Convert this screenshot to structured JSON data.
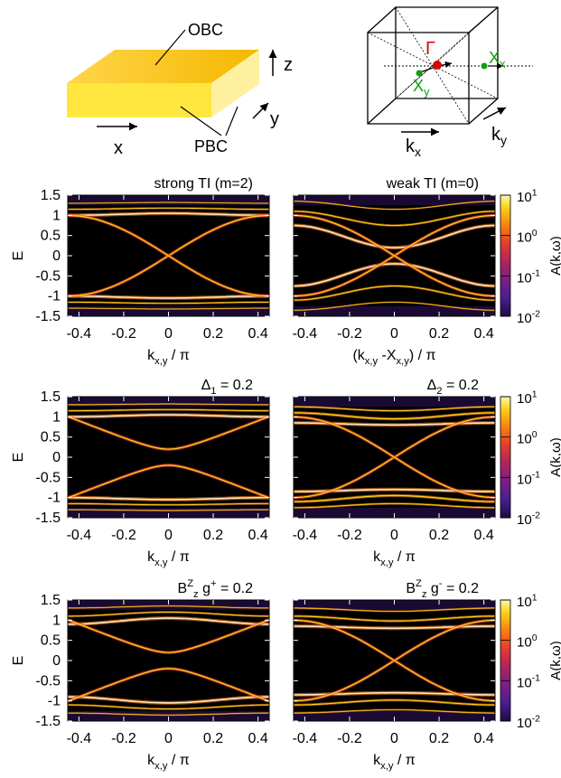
{
  "schematic": {
    "slab": {
      "top_label": "OBC",
      "side_label": "PBC",
      "axis_x": "x",
      "axis_y": "y",
      "axis_z": "z"
    },
    "bz": {
      "gamma": "Γ",
      "xx_main": "X",
      "xx_sub": "x",
      "xy_main": "X",
      "xy_sub": "y",
      "kx_main": "k",
      "kx_sub": "x",
      "ky_main": "k",
      "ky_sub": "y",
      "gamma_color": "#e00000",
      "point_color": "#10a010"
    }
  },
  "colors": {
    "colormap": [
      "#1c0b46",
      "#4a1e91",
      "#7a1f83",
      "#b0245f",
      "#e23d2d",
      "#f7820d",
      "#fbd21a",
      "#fff8b0"
    ],
    "band_hot": "#ffe7c9",
    "background": "#000000"
  },
  "chart_data": [
    {
      "type": "heatmap",
      "id": "p1",
      "title": "strong TI (m=2)",
      "x_tick_labels": [
        "-0.4",
        "-0.2",
        "0",
        "0.2",
        "0.4"
      ],
      "xlabel_main": "k",
      "xlabel_sub": "x,y",
      "xlabel_tail": " / π",
      "ylabel": "E",
      "y_tick_labels": [
        "1.5",
        "1",
        "0.5",
        "0",
        "-0.5",
        "-1",
        "-1.5"
      ],
      "xlim": [
        -0.45,
        0.45
      ],
      "ylim": [
        -1.5,
        1.5
      ],
      "surface": "crossing",
      "surface_gap": 0,
      "bands": [
        {
          "level": 1.0,
          "amp": 0.05,
          "strength": 1.0
        },
        {
          "level": 1.15,
          "amp": 0.03,
          "strength": 0.55
        },
        {
          "level": 1.3,
          "amp": 0.02,
          "strength": 0.4
        }
      ],
      "colorbar": false
    },
    {
      "type": "heatmap",
      "id": "p2",
      "title": "weak TI (m=0)",
      "x_tick_labels": [
        "-0.4",
        "-0.2",
        "0",
        "0.2",
        "0.4"
      ],
      "xlabel_main": "(k",
      "xlabel_sub": "x,y",
      "xlabel_tail": " -X",
      "xlabel_sub2": "x,y",
      "xlabel_tail2": ") / π",
      "ylabel": "",
      "y_tick_labels": [],
      "xlim": [
        -0.45,
        0.45
      ],
      "ylim": [
        -1.5,
        1.5
      ],
      "surface": "crossing",
      "surface_gap": 0,
      "bands": [
        {
          "level": 0.75,
          "amp": -0.55,
          "strength": 1.0
        },
        {
          "level": 1.1,
          "amp": -0.35,
          "strength": 0.65
        },
        {
          "level": 1.35,
          "amp": -0.2,
          "strength": 0.45
        }
      ],
      "colorbar": true,
      "colorbar_label_main": "A(k,ω)",
      "colorbar_ticks": [
        "10",
        "10",
        "10",
        "10"
      ],
      "colorbar_exps": [
        "1",
        "0",
        "-1",
        "-2"
      ]
    },
    {
      "type": "heatmap",
      "id": "p3",
      "title_main": "Δ",
      "title_sub": "1",
      "title_tail": " = 0.2",
      "x_tick_labels": [
        "-0.4",
        "-0.2",
        "0",
        "0.2",
        "0.4"
      ],
      "xlabel_main": "k",
      "xlabel_sub": "x,y",
      "xlabel_tail": " / π",
      "ylabel": "E",
      "y_tick_labels": [
        "1.5",
        "1",
        "0.5",
        "0",
        "-0.5",
        "-1",
        "-1.5"
      ],
      "xlim": [
        -0.45,
        0.45
      ],
      "ylim": [
        -1.5,
        1.5
      ],
      "surface": "gapped",
      "surface_gap": 0.2,
      "bands": [
        {
          "level": 1.0,
          "amp": 0.05,
          "strength": 1.0
        },
        {
          "level": 1.15,
          "amp": 0.03,
          "strength": 0.6
        },
        {
          "level": 1.3,
          "amp": 0.02,
          "strength": 0.45
        }
      ],
      "colorbar": false
    },
    {
      "type": "heatmap",
      "id": "p4",
      "title_main": "Δ",
      "title_sub": "2",
      "title_tail": " = 0.2",
      "x_tick_labels": [
        "-0.4",
        "-0.2",
        "0",
        "0.2",
        "0.4"
      ],
      "xlabel_main": "k",
      "xlabel_sub": "x,y",
      "xlabel_tail": " / π",
      "ylabel": "",
      "y_tick_labels": [],
      "xlim": [
        -0.45,
        0.45
      ],
      "ylim": [
        -1.5,
        1.5
      ],
      "surface": "crossing",
      "surface_gap": 0,
      "bands": [
        {
          "level": 0.85,
          "amp": -0.05,
          "strength": 1.0
        },
        {
          "level": 1.1,
          "amp": -0.15,
          "strength": 0.8
        },
        {
          "level": 1.25,
          "amp": -0.1,
          "strength": 0.6
        }
      ],
      "colorbar": true,
      "colorbar_label_main": "A(k,ω)",
      "colorbar_ticks": [
        "10",
        "10",
        "10",
        "10"
      ],
      "colorbar_exps": [
        "1",
        "0",
        "-1",
        "-2"
      ]
    },
    {
      "type": "heatmap",
      "id": "p5",
      "title_main": "B",
      "title_sup": "Z",
      "title_sub": "z",
      "title_tail": " g",
      "title_sup2": "+",
      "title_tail2": " = 0.2",
      "x_tick_labels": [
        "-0.4",
        "-0.2",
        "0",
        "0.2",
        "0.4"
      ],
      "xlabel_main": "k",
      "xlabel_sub": "x,y",
      "xlabel_tail": " / π",
      "ylabel": "E",
      "y_tick_labels": [
        "1.5",
        "1",
        "0.5",
        "0",
        "-0.5",
        "-1",
        "-1.5"
      ],
      "xlim": [
        -0.45,
        0.45
      ],
      "ylim": [
        -1.5,
        1.5
      ],
      "surface": "gapped",
      "surface_gap": 0.2,
      "bands": [
        {
          "level": 0.9,
          "amp": 0.15,
          "strength": 1.0
        },
        {
          "level": 1.1,
          "amp": 0.1,
          "strength": 0.6
        },
        {
          "level": 1.3,
          "amp": 0.05,
          "strength": 0.45
        }
      ],
      "colorbar": false
    },
    {
      "type": "heatmap",
      "id": "p6",
      "title_main": "B",
      "title_sup": "Z",
      "title_sub": "z",
      "title_tail": " g",
      "title_sup2": "-",
      "title_tail2": " = 0.2",
      "x_tick_labels": [
        "-0.4",
        "-0.2",
        "0",
        "0.2",
        "0.4"
      ],
      "xlabel_main": "k",
      "xlabel_sub": "x,y",
      "xlabel_tail": " / π",
      "ylabel": "",
      "y_tick_labels": [],
      "xlim": [
        -0.45,
        0.45
      ],
      "ylim": [
        -1.5,
        1.5
      ],
      "surface": "crossing",
      "surface_gap": 0,
      "bands": [
        {
          "level": 0.85,
          "amp": -0.05,
          "strength": 1.0
        },
        {
          "level": 1.1,
          "amp": -0.12,
          "strength": 0.7
        },
        {
          "level": 1.3,
          "amp": -0.08,
          "strength": 0.5
        }
      ],
      "colorbar": true,
      "colorbar_label_main": "A(k,ω)",
      "colorbar_ticks": [
        "10",
        "10",
        "10",
        "10"
      ],
      "colorbar_exps": [
        "1",
        "0",
        "-1",
        "-2"
      ]
    }
  ]
}
